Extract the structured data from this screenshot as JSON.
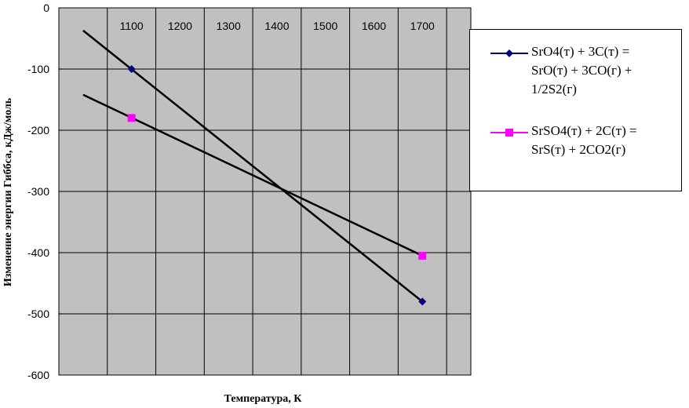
{
  "chart_data": {
    "type": "line",
    "title": "",
    "xlabel": "Температура, К",
    "ylabel": "Изменение энергии Гиббса, кДж/моль",
    "x_tick_labels": [
      "1100",
      "1200",
      "1300",
      "1400",
      "1500",
      "1600",
      "1700"
    ],
    "y_tick_labels": [
      "0",
      "-100",
      "-200",
      "-300",
      "-400",
      "-500",
      "-600"
    ],
    "xlim": [
      950,
      1800
    ],
    "ylim": [
      -600,
      0
    ],
    "grid": true,
    "legend_position": "right",
    "plot_background": "#c0c0c0",
    "series": [
      {
        "name": "SrO4(т) + 3C(т) = SrO(т) + 3CO(г) + 1/2S2(г)",
        "color": "#000080",
        "marker": "diamond",
        "points": [
          {
            "x": 1100,
            "y": -100
          },
          {
            "x": 1700,
            "y": -480
          }
        ],
        "trendline": [
          {
            "x": 1000,
            "y": -37
          },
          {
            "x": 1700,
            "y": -480
          }
        ]
      },
      {
        "name": "SrSO4(т) + 2C(т) = SrS(т) + 2CO2(г)",
        "color": "#ff00ff",
        "marker": "square",
        "points": [
          {
            "x": 1100,
            "y": -180
          },
          {
            "x": 1700,
            "y": -405
          }
        ],
        "trendline": [
          {
            "x": 1000,
            "y": -142
          },
          {
            "x": 1700,
            "y": -405
          }
        ]
      }
    ]
  }
}
